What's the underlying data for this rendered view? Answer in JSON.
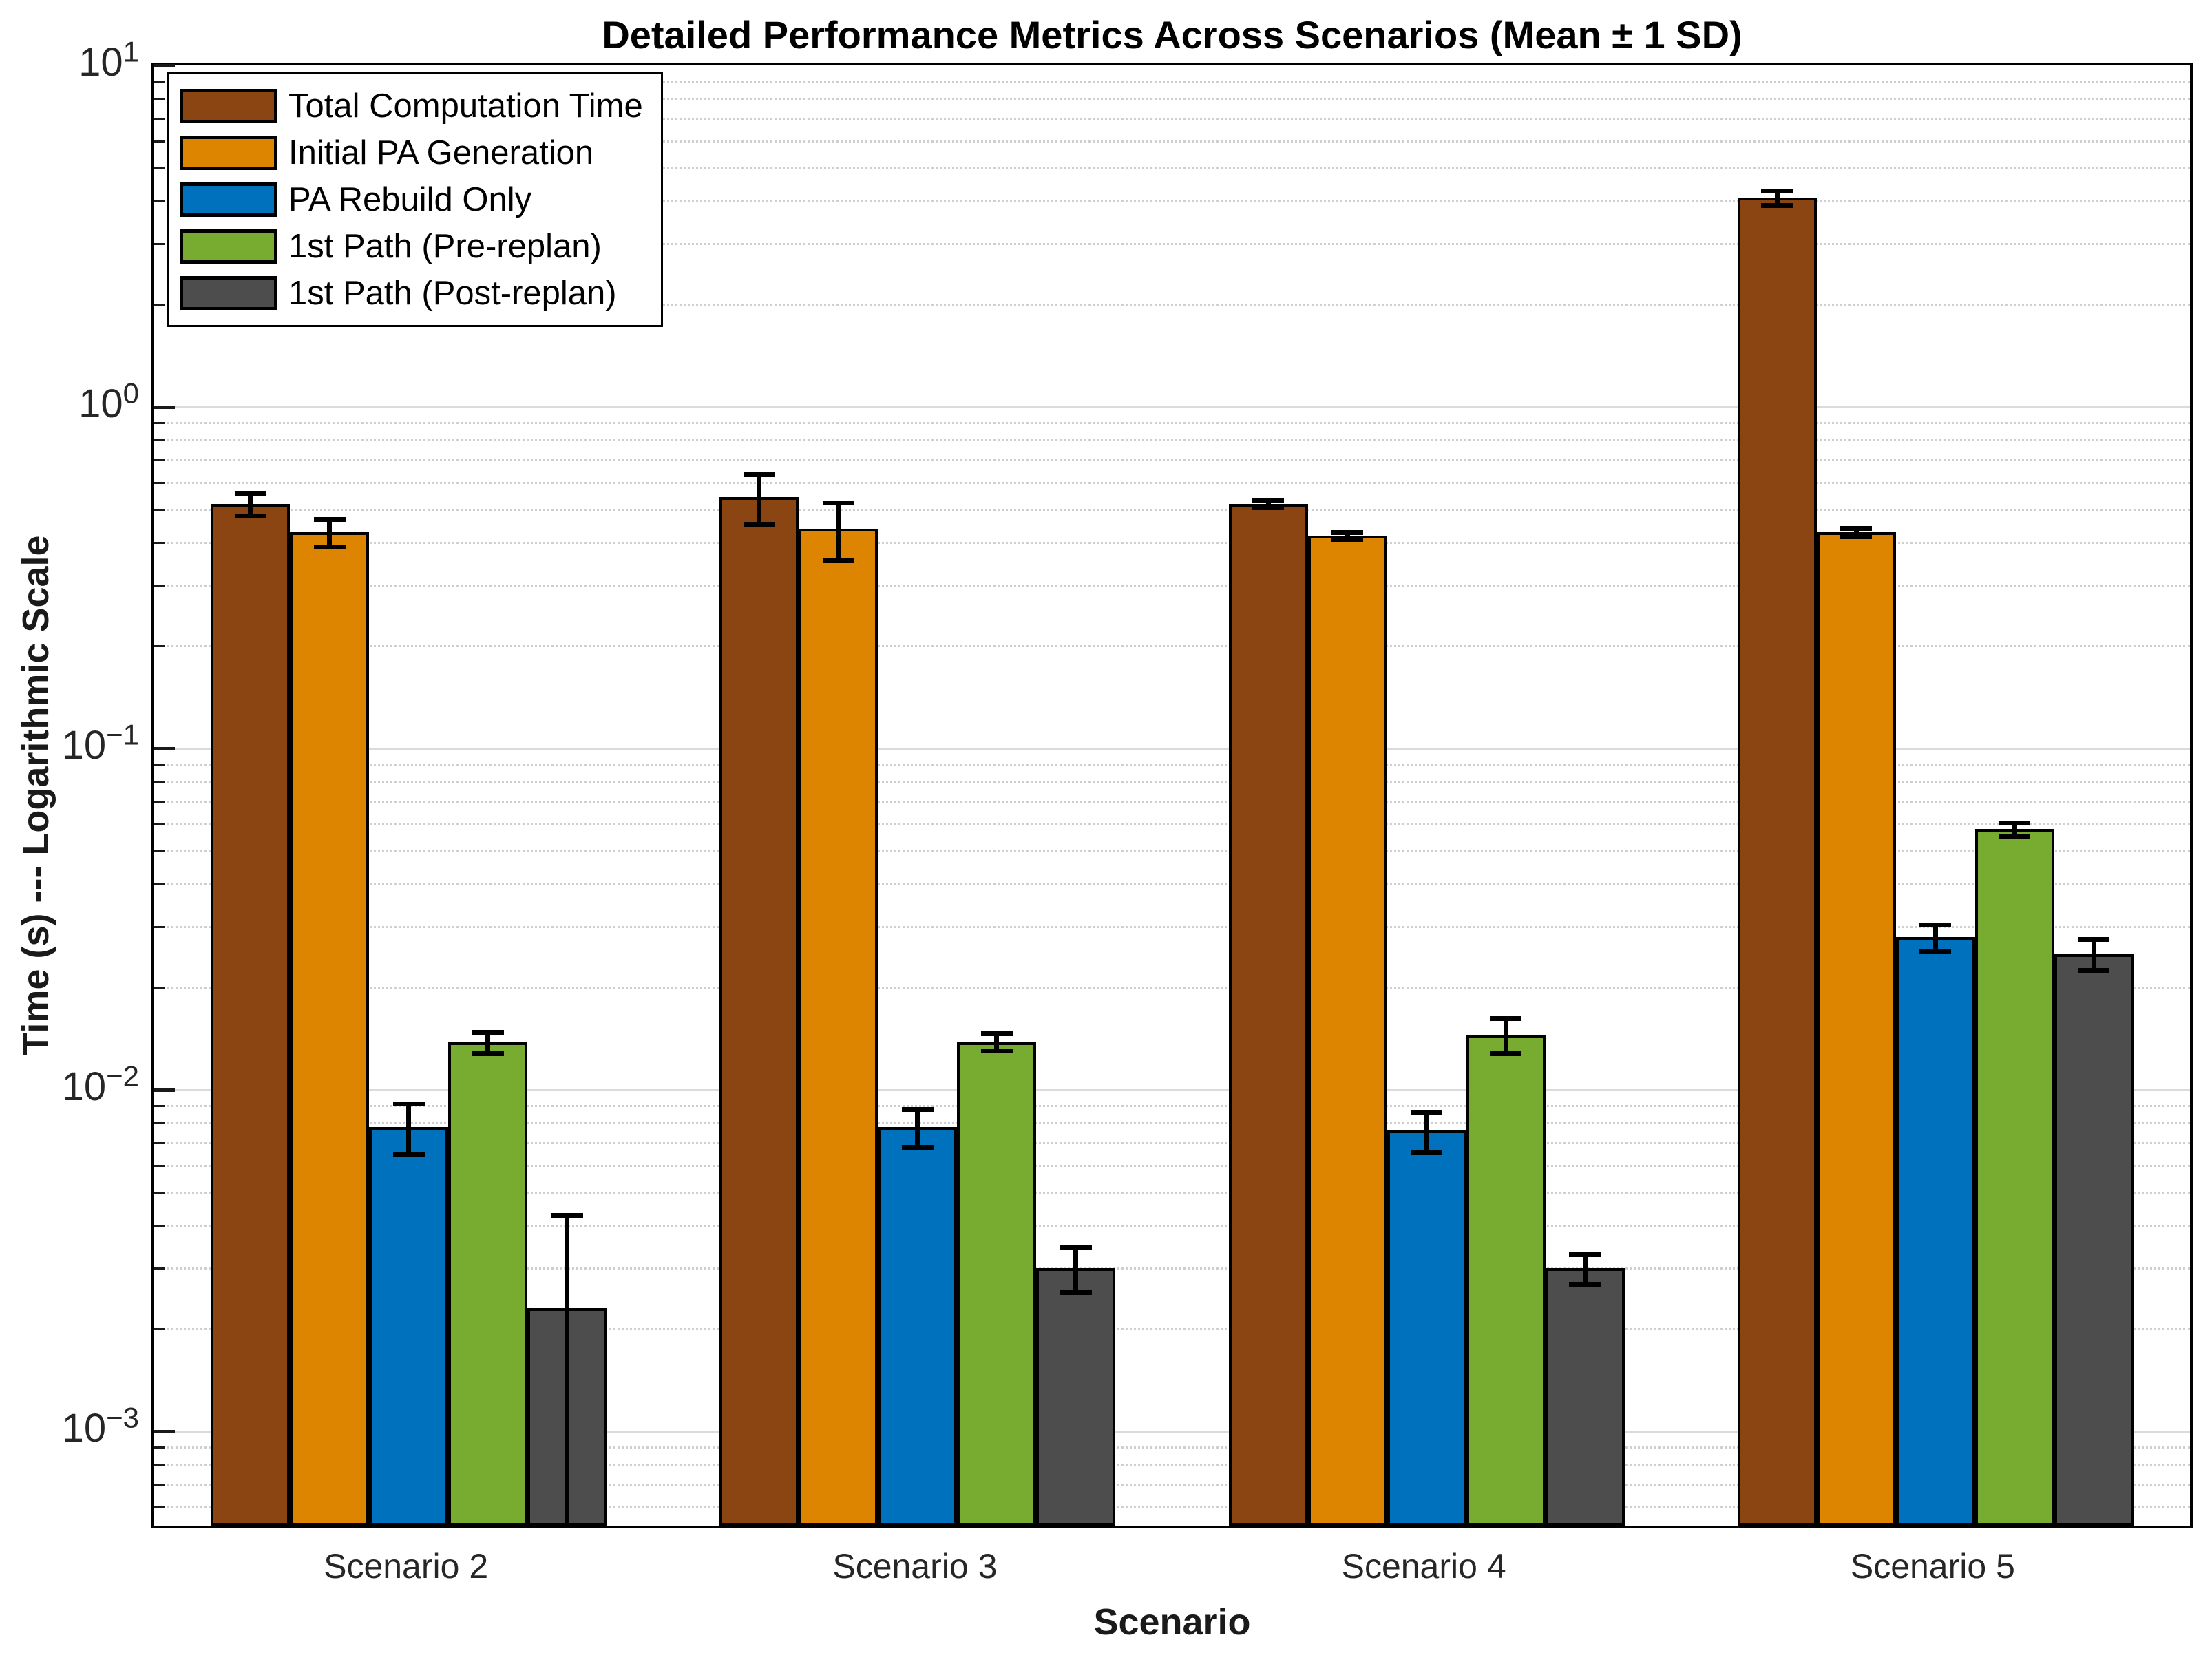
{
  "figure": {
    "title": "Detailed Performance Metrics Across Scenarios (Mean ± 1 SD)",
    "xlabel": "Scenario",
    "ylabel": "Time (s) --- Logarithmic Scale"
  },
  "chart_data": {
    "type": "bar",
    "title": "Detailed Performance Metrics Across Scenarios (Mean ± 1 SD)",
    "xlabel": "Scenario",
    "ylabel": "Time (s) --- Logarithmic Scale",
    "yscale": "log",
    "ylim": [
      0.00051,
      10
    ],
    "ytick_exponents": [
      1,
      0,
      -1,
      -2,
      -3
    ],
    "grid": true,
    "minor_grid": true,
    "legend_position": "top-left",
    "error_bars": "mean ± 1 SD",
    "categories": [
      "Scenario 2",
      "Scenario 3",
      "Scenario 4",
      "Scenario 5"
    ],
    "series": [
      {
        "name": "Total Computation Time",
        "color": "#8B4513",
        "values": [
          0.52,
          0.545,
          0.52,
          4.1
        ],
        "sd": [
          0.04,
          0.09,
          0.012,
          0.2
        ]
      },
      {
        "name": "Initial PA Generation",
        "color": "#DD8500",
        "values": [
          0.43,
          0.44,
          0.42,
          0.43
        ],
        "sd": [
          0.04,
          0.085,
          0.01,
          0.012
        ]
      },
      {
        "name": "PA Rebuild Only",
        "color": "#0072BD",
        "values": [
          0.0078,
          0.0078,
          0.0076,
          0.028
        ],
        "sd": [
          0.0013,
          0.001,
          0.001,
          0.0024
        ]
      },
      {
        "name": "1st Path (Pre-replan)",
        "color": "#77AC30",
        "values": [
          0.0138,
          0.0138,
          0.0145,
          0.058
        ],
        "sd": [
          0.001,
          0.0008,
          0.0017,
          0.0025
        ]
      },
      {
        "name": "1st Path (Post-replan)",
        "color": "#4D4D4D",
        "values": [
          0.0023,
          0.003,
          0.003,
          0.025
        ],
        "sd": [
          0.002,
          0.00045,
          0.0003,
          0.0026
        ]
      }
    ]
  }
}
